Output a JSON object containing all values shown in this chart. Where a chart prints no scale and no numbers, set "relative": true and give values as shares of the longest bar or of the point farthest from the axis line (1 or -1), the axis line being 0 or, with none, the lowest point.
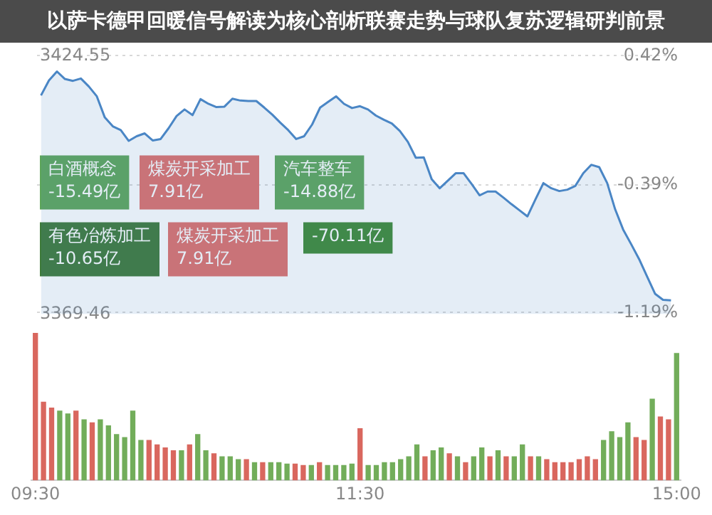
{
  "chart_data": [
    {
      "type": "area",
      "title": "以萨卡德甲回暖信号解读为核心剖析联赛走势与球队复苏逻辑研判前景",
      "color": "#4a86c5",
      "categories": [
        null,
        null,
        null,
        null,
        null,
        null,
        null,
        null,
        null,
        null,
        null,
        null,
        null,
        null,
        null,
        null,
        null,
        null,
        null,
        null,
        null,
        null,
        null,
        null,
        null,
        null,
        null,
        null,
        null,
        null,
        null,
        null,
        null,
        null,
        null,
        null,
        null,
        null,
        null,
        null,
        null,
        null,
        null,
        null,
        null,
        null,
        null,
        null,
        null,
        null,
        null,
        null,
        null,
        null,
        null,
        null,
        null,
        null,
        null,
        null,
        null,
        null,
        null,
        null,
        null,
        null,
        null,
        null,
        null,
        null,
        null,
        null,
        null,
        null,
        null,
        null,
        null,
        null,
        null,
        null
      ],
      "values": [
        3416.1,
        3419.3,
        3421.2,
        3419.6,
        3419.2,
        3419.7,
        3418.0,
        3415.9,
        3411.4,
        3409.5,
        3408.7,
        3406.4,
        3407.4,
        3408.0,
        3406.5,
        3406.8,
        3409.1,
        3411.7,
        3413.1,
        3411.9,
        3415.3,
        3414.3,
        3413.6,
        3413.7,
        3415.4,
        3415.0,
        3414.9,
        3414.9,
        3413.5,
        3412.0,
        3410.3,
        3408.7,
        3406.8,
        3407.4,
        3409.9,
        3413.5,
        3414.7,
        3415.9,
        3414.3,
        3413.4,
        3413.8,
        3413.1,
        3411.8,
        3410.9,
        3410.1,
        3408.5,
        3406.2,
        3402.8,
        3402.9,
        3398.2,
        3396.3,
        3397.9,
        3399.5,
        3399.5,
        3397.2,
        3394.8,
        3395.6,
        3395.6,
        3394.3,
        3392.9,
        3391.6,
        3390.3,
        3393.9,
        3397.4,
        3396.3,
        3395.7,
        3396.0,
        3396.8,
        3399.5,
        3401.3,
        3400.8,
        3397.4,
        3391.8,
        3387.5,
        3384.4,
        3381.2,
        3377.5,
        3373.8,
        3372.5,
        3372.4
      ],
      "ylim": [
        3369.46,
        3424.55
      ],
      "yticks": [
        3424.55,
        3369.46
      ],
      "y2lim": [
        -1.2,
        0.42
      ],
      "y2ticks": [
        {
          "value": 0.42,
          "label": "0.42%"
        },
        {
          "value": -0.39,
          "label": "-0.39%"
        },
        {
          "value": -1.19,
          "label": "-1.19%"
        }
      ],
      "grid": "y",
      "tick_labels": "y",
      "annotations": [
        "白酒概念\n-15.49亿",
        "煤炭开采加工\n7.91亿",
        "有色冶炼加工\n-10.65亿",
        "汽车整车\n-14.88亿",
        "煤炭开采加工\n7.91亿",
        "-70.11亿"
      ]
    },
    {
      "type": "bar",
      "relative": true,
      "categories": [
        "09:30",
        null,
        null,
        null,
        null,
        null,
        null,
        null,
        null,
        null,
        null,
        null,
        null,
        null,
        null,
        null,
        null,
        null,
        null,
        null,
        null,
        null,
        null,
        null,
        null,
        null,
        null,
        null,
        null,
        null,
        null,
        null,
        null,
        null,
        null,
        null,
        null,
        null,
        null,
        null,
        "11:30",
        null,
        null,
        null,
        null,
        null,
        null,
        null,
        null,
        null,
        null,
        null,
        null,
        null,
        null,
        null,
        null,
        null,
        null,
        null,
        null,
        null,
        null,
        null,
        null,
        null,
        null,
        null,
        null,
        null,
        null,
        null,
        null,
        null,
        null,
        null,
        null,
        null,
        null,
        "15:00"
      ],
      "values": [
        1,
        0.53,
        0.49,
        0.47,
        0.45,
        0.47,
        0.41,
        0.39,
        0.41,
        0.37,
        0.31,
        0.29,
        0.47,
        0.27,
        0.27,
        0.24,
        0.22,
        0.2,
        0.2,
        0.24,
        0.31,
        0.2,
        0.18,
        0.16,
        0.16,
        0.14,
        0.14,
        0.12,
        0.12,
        0.12,
        0.12,
        0.11,
        0.11,
        0.1,
        0.1,
        0.12,
        0.1,
        0.1,
        0.1,
        0.11,
        0.35,
        0.1,
        0.1,
        0.12,
        0.12,
        0.14,
        0.16,
        0.24,
        0.16,
        0.2,
        0.22,
        0.18,
        0.16,
        0.12,
        0.16,
        0.22,
        0.16,
        0.2,
        0.16,
        0.16,
        0.24,
        0.16,
        0.16,
        0.14,
        0.12,
        0.12,
        0.12,
        0.14,
        0.16,
        0.14,
        0.27,
        0.33,
        0.29,
        0.39,
        0.29,
        0.27,
        0.55,
        0.43,
        0.41,
        0.86
      ],
      "colors": [
        "#d9675e",
        "#d9675e",
        "#d9675e",
        "#72ad5a",
        "#72ad5a",
        "#d9675e",
        "#72ad5a",
        "#d9675e",
        "#72ad5a",
        "#72ad5a",
        "#72ad5a",
        "#72ad5a",
        "#72ad5a",
        "#72ad5a",
        "#d9675e",
        "#d9675e",
        "#d9675e",
        "#d9675e",
        "#72ad5a",
        "#d9675e",
        "#72ad5a",
        "#72ad5a",
        "#d9675e",
        "#72ad5a",
        "#72ad5a",
        "#72ad5a",
        "#d9675e",
        "#72ad5a",
        "#d9675e",
        "#72ad5a",
        "#72ad5a",
        "#72ad5a",
        "#d9675e",
        "#d9675e",
        "#72ad5a",
        "#d9675e",
        "#72ad5a",
        "#72ad5a",
        "#72ad5a",
        "#72ad5a",
        "#d9675e",
        "#72ad5a",
        "#72ad5a",
        "#72ad5a",
        "#72ad5a",
        "#72ad5a",
        "#72ad5a",
        "#72ad5a",
        "#d9675e",
        "#72ad5a",
        "#72ad5a",
        "#d9675e",
        "#72ad5a",
        "#d9675e",
        "#72ad5a",
        "#72ad5a",
        "#d9675e",
        "#72ad5a",
        "#d9675e",
        "#72ad5a",
        "#72ad5a",
        "#d9675e",
        "#72ad5a",
        "#d9675e",
        "#d9675e",
        "#d9675e",
        "#d9675e",
        "#d9675e",
        "#d9675e",
        "#d9675e",
        "#72ad5a",
        "#72ad5a",
        "#72ad5a",
        "#72ad5a",
        "#d9675e",
        "#d9675e",
        "#72ad5a",
        "#d9675e",
        "#d9675e",
        "#72ad5a"
      ]
    }
  ]
}
